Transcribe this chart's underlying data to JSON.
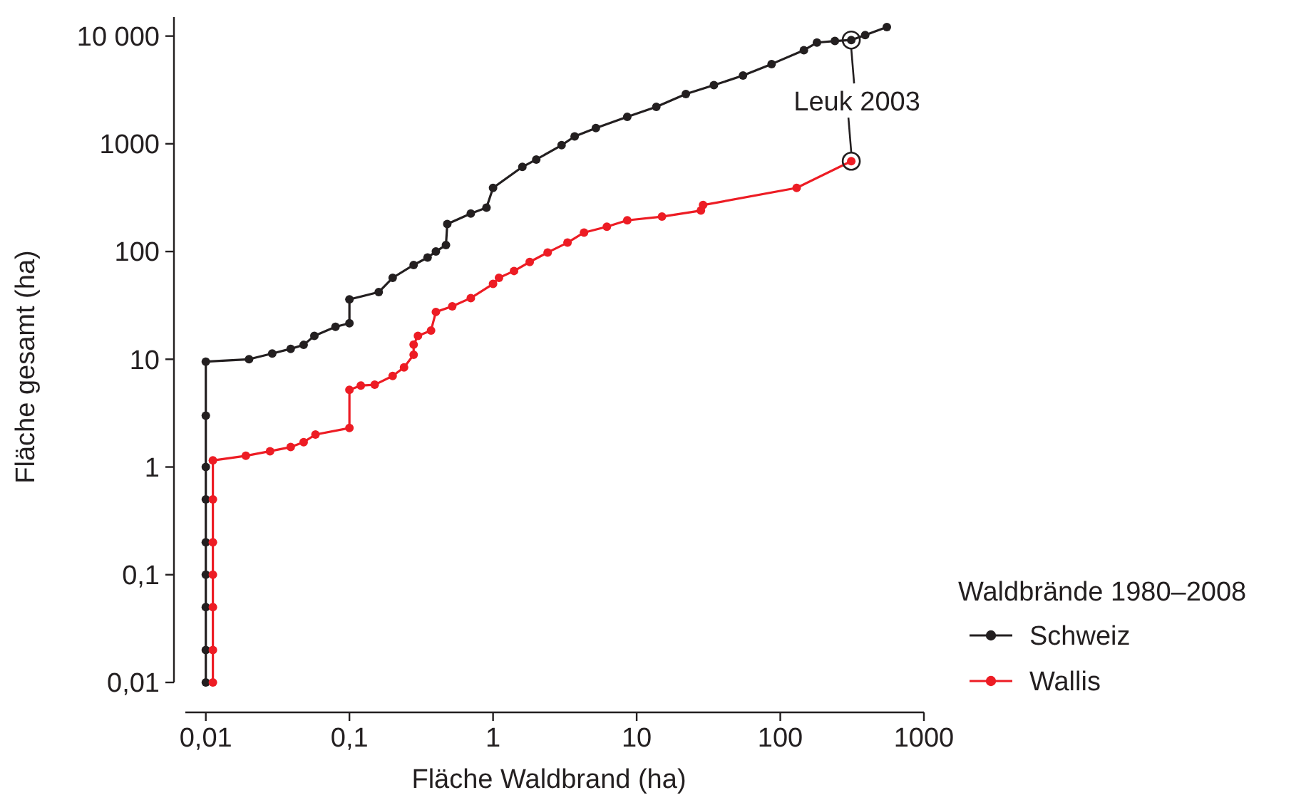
{
  "chart_data": {
    "type": "line",
    "xlabel": "Fläche Waldbrand (ha)",
    "ylabel": "Fläche gesamt (ha)",
    "legend_title": "Waldbrände 1980–2008",
    "log": "xy",
    "grid": false,
    "legend": "bottom right",
    "marker": "circle",
    "line_style": "solid",
    "xlim": [
      0.006,
      1000
    ],
    "ylim": [
      0.01,
      15000
    ],
    "xticks": [
      {
        "value": 0.01,
        "label": "0,01"
      },
      {
        "value": 0.1,
        "label": "0,1"
      },
      1,
      10,
      100,
      1000
    ],
    "yticks": [
      {
        "value": 0.01,
        "label": "0,01"
      },
      {
        "value": 0.1,
        "label": "0,1"
      },
      1,
      10,
      100,
      1000,
      {
        "value": 10000,
        "label": "10 000"
      }
    ],
    "annotations": [
      {
        "text": "Leuk 2003",
        "x": 312,
        "y": 690
      }
    ],
    "series": [
      {
        "name": "Schweiz",
        "color": "#231f20",
        "x": [
          0.01,
          0.01,
          0.01,
          0.01,
          0.01,
          0.01,
          0.01,
          0.01,
          0.01,
          0.02,
          0.029,
          0.039,
          0.048,
          0.057,
          0.08,
          0.1,
          0.1,
          0.16,
          0.2,
          0.28,
          0.35,
          0.4,
          0.47,
          0.48,
          0.7,
          0.9,
          1,
          1.6,
          2,
          3,
          3.7,
          5.2,
          8.6,
          13.7,
          22,
          34.5,
          55,
          87,
          146,
          180,
          240,
          312,
          390,
          552
        ],
        "values": [
          0.01,
          0.02,
          0.05,
          0.1,
          0.2,
          0.5,
          1,
          3,
          9.5,
          10,
          11.3,
          12.5,
          13.6,
          16.5,
          20,
          21.6,
          36,
          42,
          57,
          75,
          88,
          100,
          115,
          180,
          225,
          255,
          390,
          610,
          715,
          970,
          1170,
          1400,
          1780,
          2200,
          2900,
          3500,
          4300,
          5500,
          7400,
          8700,
          9000,
          9190,
          10200,
          12100
        ]
      },
      {
        "name": "Wallis",
        "color": "#ed1c24",
        "x": [
          0.0112,
          0.0112,
          0.0112,
          0.0112,
          0.0112,
          0.0112,
          0.0112,
          0.019,
          0.028,
          0.039,
          0.048,
          0.058,
          0.1,
          0.1,
          0.12,
          0.15,
          0.2,
          0.24,
          0.28,
          0.28,
          0.3,
          0.37,
          0.4,
          0.52,
          0.7,
          1,
          1.1,
          1.4,
          1.8,
          2.4,
          3.3,
          4.3,
          6.2,
          8.6,
          15,
          28,
          29,
          130,
          312
        ],
        "values": [
          0.01,
          0.02,
          0.05,
          0.1,
          0.2,
          0.5,
          1.15,
          1.27,
          1.4,
          1.53,
          1.7,
          2,
          2.3,
          5.2,
          5.7,
          5.8,
          7,
          8.4,
          11,
          13.7,
          16.5,
          18.5,
          27.5,
          31,
          37,
          50,
          57,
          66,
          80,
          98,
          121,
          150,
          170,
          195,
          211,
          240,
          270,
          390,
          690
        ]
      }
    ]
  }
}
